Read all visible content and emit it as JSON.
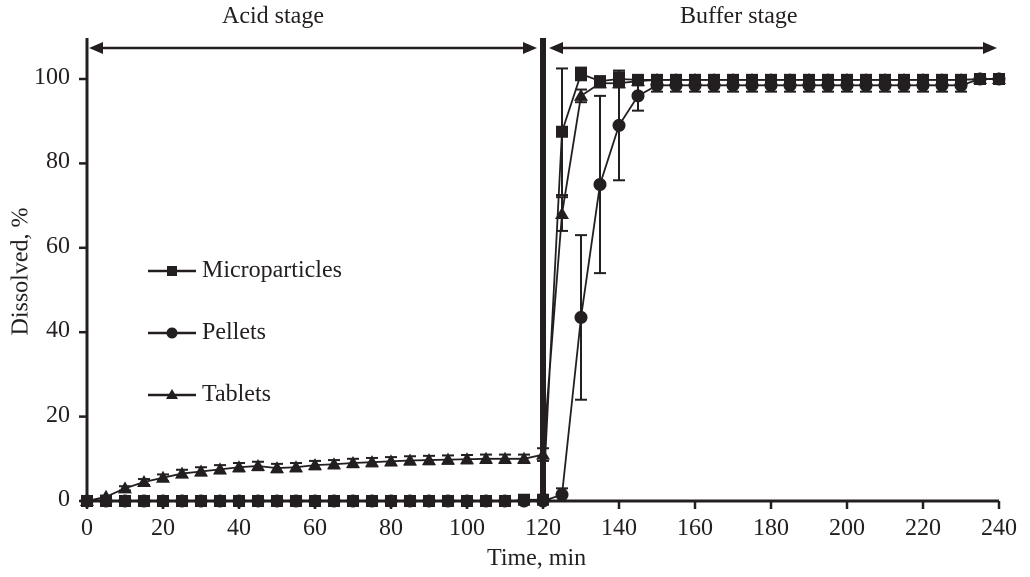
{
  "chart_data": {
    "type": "line",
    "title": "",
    "xlabel": "Time, min",
    "ylabel": "Dissolved, %",
    "xlim": [
      0,
      240
    ],
    "ylim": [
      0,
      100
    ],
    "xticks": [
      0,
      20,
      40,
      60,
      80,
      100,
      120,
      140,
      160,
      180,
      200,
      220,
      240
    ],
    "yticks": [
      0,
      20,
      40,
      60,
      80,
      100
    ],
    "grid": false,
    "legend_position": "center-left",
    "annotations": [
      {
        "text": "Acid stage",
        "x_range": [
          0,
          120
        ]
      },
      {
        "text": "Buffer stage",
        "x_range": [
          120,
          240
        ]
      }
    ],
    "stage_divider_x": 120,
    "series": [
      {
        "name": "Microparticles",
        "marker": "square",
        "x": [
          0,
          5,
          10,
          15,
          20,
          25,
          30,
          35,
          40,
          45,
          50,
          55,
          60,
          65,
          70,
          75,
          80,
          85,
          90,
          95,
          100,
          105,
          110,
          115,
          120,
          125,
          130,
          135,
          140,
          145,
          150,
          155,
          160,
          165,
          170,
          175,
          180,
          185,
          190,
          195,
          200,
          205,
          210,
          215,
          220,
          225,
          230,
          235,
          240
        ],
        "y": [
          0,
          0,
          0,
          0,
          0,
          0,
          0,
          0,
          0,
          0,
          0,
          0,
          0,
          0,
          0,
          0,
          0,
          0,
          0,
          0,
          0,
          0,
          0,
          0.3,
          0.3,
          87.5,
          101.2,
          99.5,
          100,
          99.8,
          99.8,
          99.8,
          99.8,
          99.8,
          99.8,
          99.8,
          99.8,
          99.8,
          99.8,
          99.8,
          99.8,
          99.8,
          99.8,
          99.8,
          99.8,
          99.8,
          99.8,
          100,
          100
        ],
        "error": [
          0,
          0,
          0,
          0,
          0,
          0,
          0,
          0,
          0,
          0,
          0,
          0,
          0,
          0,
          0,
          0,
          0,
          0,
          0,
          0,
          0,
          0,
          0,
          0,
          0,
          15,
          1.5,
          0.5,
          1.5,
          0.5,
          0.5,
          0.5,
          0.5,
          0.5,
          0.5,
          0.5,
          0.5,
          0.5,
          0.5,
          0.5,
          0.5,
          0.5,
          0.5,
          0.5,
          0.5,
          0.5,
          0.5,
          0,
          0
        ]
      },
      {
        "name": "Pellets",
        "marker": "circle",
        "x": [
          0,
          5,
          10,
          15,
          20,
          25,
          30,
          35,
          40,
          45,
          50,
          55,
          60,
          65,
          70,
          75,
          80,
          85,
          90,
          95,
          100,
          105,
          110,
          115,
          120,
          125,
          130,
          135,
          140,
          145,
          150,
          155,
          160,
          165,
          170,
          175,
          180,
          185,
          190,
          195,
          200,
          205,
          210,
          215,
          220,
          225,
          230,
          235,
          240
        ],
        "y": [
          0,
          0,
          0,
          0,
          0,
          0,
          0,
          0,
          0,
          0,
          0,
          0,
          0,
          0,
          0,
          0,
          0,
          0,
          0,
          0,
          0,
          0,
          0,
          0,
          0,
          1.5,
          43.5,
          75,
          89,
          96,
          98.5,
          98.5,
          98.5,
          98.5,
          98.5,
          98.5,
          98.5,
          98.5,
          98.5,
          98.5,
          98.5,
          98.5,
          98.5,
          98.5,
          98.5,
          98.5,
          98.5,
          100,
          100
        ],
        "error": [
          0,
          0,
          0,
          0,
          0,
          0,
          0,
          0,
          0,
          0,
          0,
          0,
          0,
          0,
          0,
          0,
          0,
          0,
          0,
          0,
          0,
          0,
          0,
          0,
          0,
          1.5,
          19.5,
          21,
          13,
          3.5,
          1.5,
          1.5,
          1.5,
          1.5,
          1.5,
          1.5,
          1.5,
          1.5,
          1.5,
          1.5,
          1.5,
          1.5,
          1.5,
          1.5,
          1.5,
          1.5,
          1.5,
          0,
          0
        ]
      },
      {
        "name": "Tablets",
        "marker": "triangle",
        "x": [
          0,
          5,
          10,
          15,
          20,
          25,
          30,
          35,
          40,
          45,
          50,
          55,
          60,
          65,
          70,
          75,
          80,
          85,
          90,
          95,
          100,
          105,
          110,
          115,
          120,
          125,
          130,
          135,
          140,
          145,
          150,
          155,
          160,
          165,
          170,
          175,
          180,
          185,
          190,
          195,
          200,
          205,
          210,
          215,
          220,
          225,
          230,
          235,
          240
        ],
        "y": [
          0,
          1,
          3,
          4.5,
          5.5,
          6.5,
          7,
          7.5,
          8,
          8.3,
          7.8,
          8,
          8.5,
          8.7,
          9,
          9.2,
          9.4,
          9.6,
          9.7,
          9.8,
          9.9,
          10,
          10,
          10,
          11,
          68,
          96,
          99,
          99,
          99.5,
          99.8,
          99.8,
          99.8,
          99.8,
          99.8,
          99.8,
          99.8,
          99.8,
          99.8,
          99.8,
          99.8,
          99.8,
          99.8,
          99.8,
          99.8,
          99.8,
          99.8,
          100,
          100
        ],
        "error": [
          0,
          0.3,
          0.5,
          0.7,
          0.8,
          0.9,
          1,
          1,
          1,
          1,
          1,
          1,
          1,
          1,
          1,
          1,
          1,
          1,
          1,
          1,
          1,
          1,
          1,
          1,
          1.5,
          4,
          1.5,
          1,
          1,
          1,
          1,
          1,
          1,
          1,
          1,
          1,
          1,
          1,
          1,
          1,
          1,
          1,
          1,
          1,
          1,
          1,
          1,
          0,
          0
        ]
      }
    ]
  }
}
